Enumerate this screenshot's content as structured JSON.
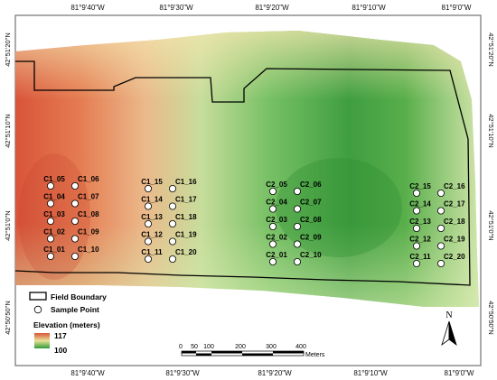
{
  "top_coords": [
    "81°9'40\"W",
    "81°9'30\"W",
    "81°9'20\"W",
    "81°9'10\"W",
    "81°9'0\"W"
  ],
  "bottom_coords": [
    "81°9'40\"W",
    "81°9'30\"W",
    "81°9'20\"W",
    "81°9'10\"W",
    "81°9'0\"W"
  ],
  "left_coords": [
    "42°51'20\"N",
    "42°51'10\"N",
    "42°51'0\"N",
    "42°50'50\"N"
  ],
  "right_coords": [
    "42°51'20\"N",
    "42°51'10\"N",
    "42°51'0\"N",
    "42°50'50\"N"
  ],
  "legend": {
    "boundary_label": "Field Boundary",
    "sample_label": "Sample Point",
    "elevation_title": "Elevation (meters)",
    "elev_high": "117",
    "elev_low": "100",
    "color_high": "#d9543a",
    "color_mid": "#e8e29a",
    "color_low": "#2f9a35"
  },
  "scale": {
    "ticks": [
      "0",
      "50",
      "100",
      "200",
      "300",
      "400"
    ],
    "unit": "Meters"
  },
  "north_label": "N",
  "groups": [
    {
      "labels": [
        [
          "C1_05",
          "C1_06"
        ],
        [
          "C1_04",
          "C1_07"
        ],
        [
          "C1_03",
          "C1_08"
        ],
        [
          "C1_02",
          "C1_09"
        ],
        [
          "C1_01",
          "C1_10"
        ]
      ]
    },
    {
      "labels": [
        [
          "C1_15",
          "C1_16"
        ],
        [
          "C1_14",
          "C1_17"
        ],
        [
          "C1_13",
          "C1_18"
        ],
        [
          "C1_12",
          "C1_19"
        ],
        [
          "C1_11",
          "C1_20"
        ]
      ]
    },
    {
      "labels": [
        [
          "C2_05",
          "C2_06"
        ],
        [
          "C2_04",
          "C2_07"
        ],
        [
          "C2_03",
          "C2_08"
        ],
        [
          "C2_02",
          "C2_09"
        ],
        [
          "C2_01",
          "C2_10"
        ]
      ]
    },
    {
      "labels": [
        [
          "C2_15",
          "C2_16"
        ],
        [
          "C2_14",
          "C2_17"
        ],
        [
          "C2_13",
          "C2_18"
        ],
        [
          "C2_12",
          "C2_19"
        ],
        [
          "C2_11",
          "C2_20"
        ]
      ]
    }
  ]
}
